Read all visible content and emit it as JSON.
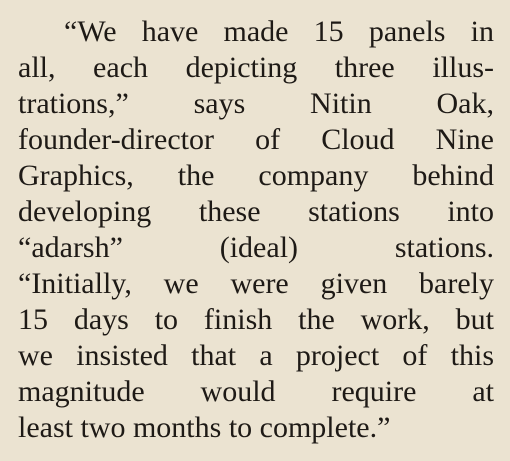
{
  "article": {
    "lines": [
      "“We have made 15 panels in",
      "all, each depicting three illus-",
      "trations,” says Nitin Oak,",
      "founder-director of Cloud Nine",
      "Graphics, the company behind",
      "developing these stations into",
      "“adarsh” (ideal) stations.",
      "“Initially, we were given barely",
      "15 days to finish the work, but",
      "we insisted that a project of this",
      "magnitude would require at",
      "least two months to complete.”"
    ]
  }
}
